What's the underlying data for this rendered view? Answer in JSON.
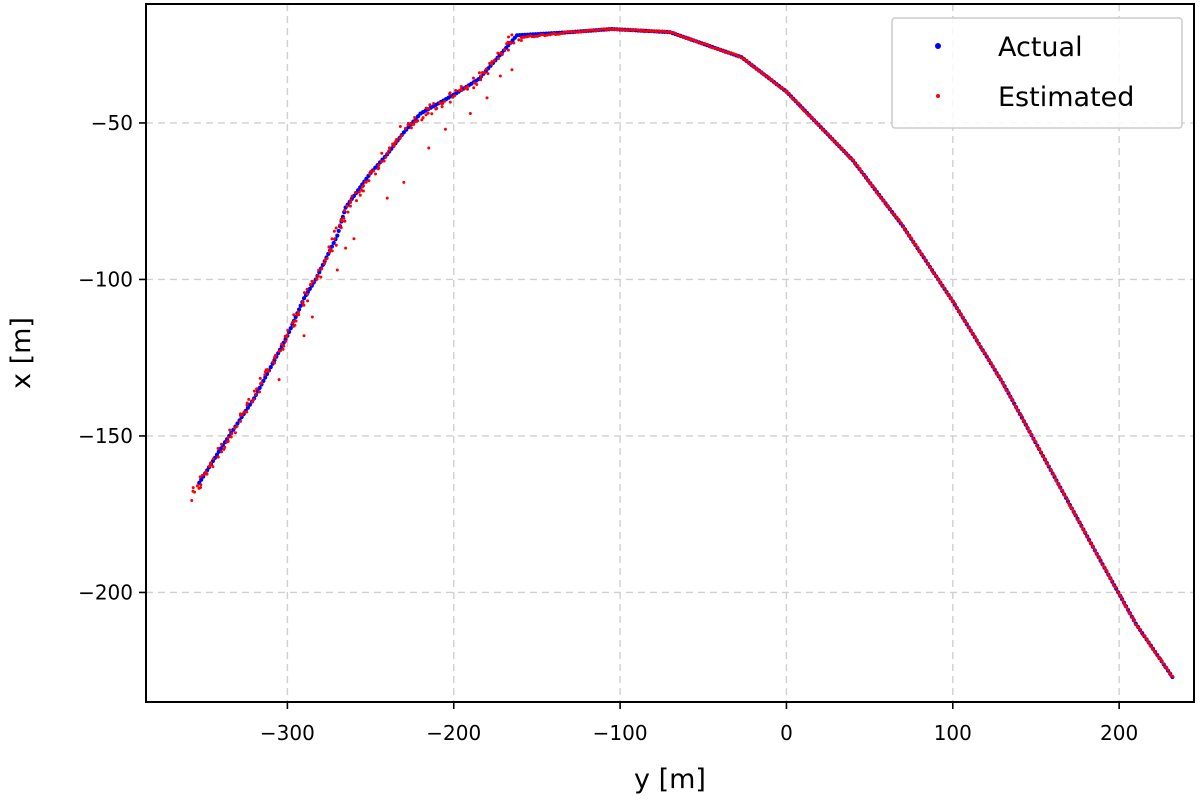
{
  "chart_data": {
    "type": "scatter",
    "title": "",
    "xlabel": "y [m]",
    "ylabel": "x [m]",
    "xlim": [
      -385,
      245
    ],
    "ylim": [
      -235,
      -12
    ],
    "xticks": [
      -300,
      -200,
      -100,
      0,
      100,
      200
    ],
    "yticks": [
      -50,
      -100,
      -150,
      -200
    ],
    "xtick_labels": [
      "−300",
      "−200",
      "−100",
      "0",
      "100",
      "200"
    ],
    "ytick_labels": [
      "−50",
      "−100",
      "−150",
      "−200"
    ],
    "grid": true,
    "legend_position": "top-right",
    "series": [
      {
        "name": "Actual",
        "color": "#0000ff",
        "marker": "dot-large",
        "path": [
          [
            -353,
            -165
          ],
          [
            -340,
            -154
          ],
          [
            -320,
            -138
          ],
          [
            -300,
            -118
          ],
          [
            -290,
            -106
          ],
          [
            -283,
            -100
          ],
          [
            -270,
            -86
          ],
          [
            -265,
            -77
          ],
          [
            -250,
            -66
          ],
          [
            -240,
            -60
          ],
          [
            -230,
            -53
          ],
          [
            -220,
            -47
          ],
          [
            -200,
            -41
          ],
          [
            -185,
            -36
          ],
          [
            -175,
            -30
          ],
          [
            -162,
            -22
          ],
          [
            -130,
            -21
          ],
          [
            -105,
            -20
          ],
          [
            -70,
            -21
          ],
          [
            -27,
            -29
          ],
          [
            0,
            -40
          ],
          [
            40,
            -62
          ],
          [
            70,
            -83
          ],
          [
            100,
            -107
          ],
          [
            130,
            -133
          ],
          [
            160,
            -162
          ],
          [
            190,
            -191
          ],
          [
            210,
            -210
          ],
          [
            232,
            -227
          ]
        ]
      },
      {
        "name": "Estimated",
        "color": "#ff0000",
        "marker": "dot-small",
        "path": [
          [
            -358,
            -170
          ],
          [
            -345,
            -158
          ],
          [
            -330,
            -146
          ],
          [
            -315,
            -133
          ],
          [
            -300,
            -118
          ],
          [
            -290,
            -107
          ],
          [
            -280,
            -97
          ],
          [
            -270,
            -85
          ],
          [
            -262,
            -76
          ],
          [
            -250,
            -67
          ],
          [
            -240,
            -60
          ],
          [
            -230,
            -52
          ],
          [
            -215,
            -46
          ],
          [
            -200,
            -41
          ],
          [
            -185,
            -36
          ],
          [
            -175,
            -30
          ],
          [
            -165,
            -23
          ],
          [
            -130,
            -21
          ],
          [
            -105,
            -20
          ],
          [
            -70,
            -21
          ],
          [
            -27,
            -29
          ],
          [
            0,
            -40
          ],
          [
            40,
            -62
          ],
          [
            70,
            -83
          ],
          [
            100,
            -107
          ],
          [
            130,
            -133
          ],
          [
            160,
            -162
          ],
          [
            190,
            -191
          ],
          [
            210,
            -210
          ],
          [
            232,
            -227
          ]
        ],
        "outliers": [
          [
            -305,
            -132
          ],
          [
            -290,
            -118
          ],
          [
            -285,
            -112
          ],
          [
            -270,
            -97
          ],
          [
            -265,
            -90
          ],
          [
            -260,
            -87
          ],
          [
            -240,
            -74
          ],
          [
            -230,
            -69
          ],
          [
            -215,
            -58
          ],
          [
            -205,
            -52
          ],
          [
            -190,
            -47
          ],
          [
            -180,
            -42
          ],
          [
            -172,
            -35
          ],
          [
            -165,
            -33
          ]
        ]
      }
    ]
  }
}
